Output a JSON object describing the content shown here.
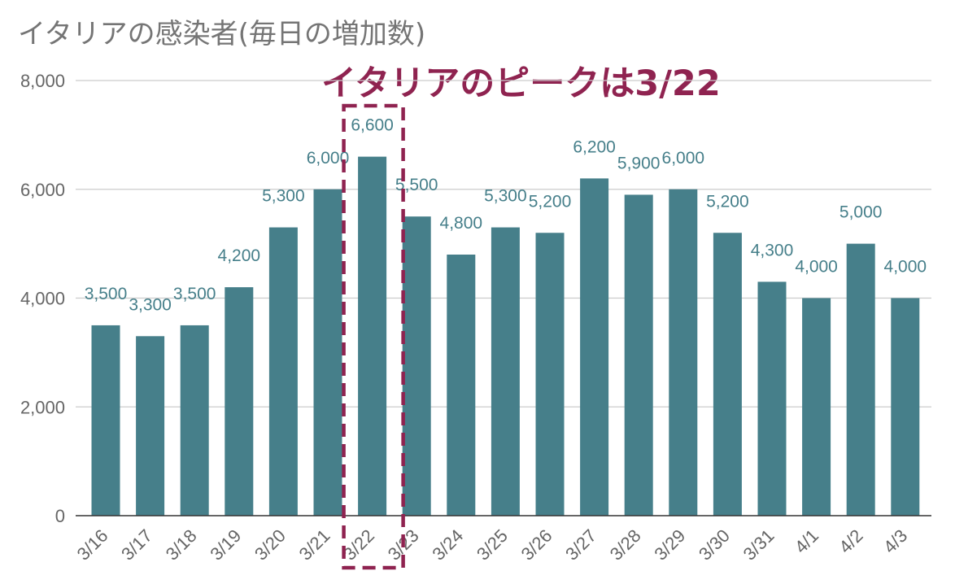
{
  "chart_data": {
    "type": "bar",
    "title": "イタリアの感染者(毎日の増加数)",
    "annotation": "イタリアのピークは3/22",
    "highlight_category": "3/22",
    "categories": [
      "3/16",
      "3/17",
      "3/18",
      "3/19",
      "3/20",
      "3/21",
      "3/22",
      "3/23",
      "3/24",
      "3/25",
      "3/26",
      "3/27",
      "3/28",
      "3/29",
      "3/30",
      "3/31",
      "4/1",
      "4/2",
      "4/3"
    ],
    "values": [
      3500,
      3300,
      3500,
      4200,
      5300,
      6000,
      6600,
      5500,
      4800,
      5300,
      5200,
      6200,
      5900,
      6000,
      5200,
      4300,
      4000,
      5000,
      4000
    ],
    "data_labels": [
      "3,500",
      "3,300",
      "3,500",
      "4,200",
      "5,300",
      "6,000",
      "6,600",
      "5,500",
      "4,800",
      "5,300",
      "5,200",
      "6,200",
      "5,900",
      "6,000",
      "5,200",
      "4,300",
      "4,000",
      "5,000",
      "4,000"
    ],
    "yticks": [
      0,
      2000,
      4000,
      6000,
      8000
    ],
    "ytick_labels": [
      "0",
      "2,000",
      "4,000",
      "6,000",
      "8,000"
    ],
    "ylim": [
      0,
      8000
    ],
    "grid": true,
    "legend": "none",
    "colors": {
      "bar": "#467f8a",
      "highlight": "#8f2350",
      "title": "#757575",
      "grid": "#cccccc"
    }
  }
}
